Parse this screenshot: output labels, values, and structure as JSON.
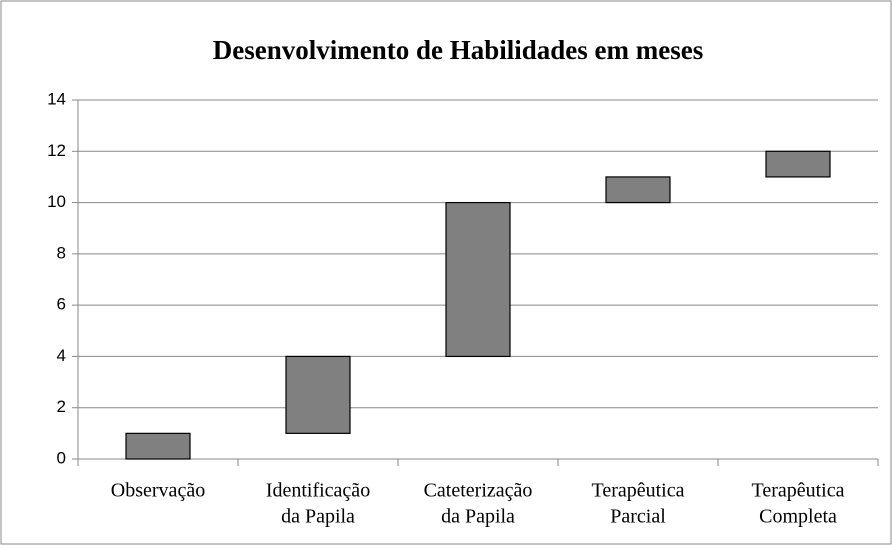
{
  "chart_data": {
    "type": "floating-bar",
    "title": "Desenvolvimento de Habilidades em meses",
    "categories": [
      [
        "Observação"
      ],
      [
        "Identificação",
        "da Papila"
      ],
      [
        "Cateterização",
        "da Papila"
      ],
      [
        "Terapêutica",
        "Parcial"
      ],
      [
        "Terapêutica",
        "Completa"
      ]
    ],
    "start": [
      0,
      1,
      4,
      10,
      11
    ],
    "end": [
      1,
      4,
      10,
      11,
      12
    ],
    "color": "#808080",
    "ylim": [
      0,
      14
    ],
    "yticks": [
      0,
      2,
      4,
      6,
      8,
      10,
      12,
      14
    ],
    "grid": true
  }
}
